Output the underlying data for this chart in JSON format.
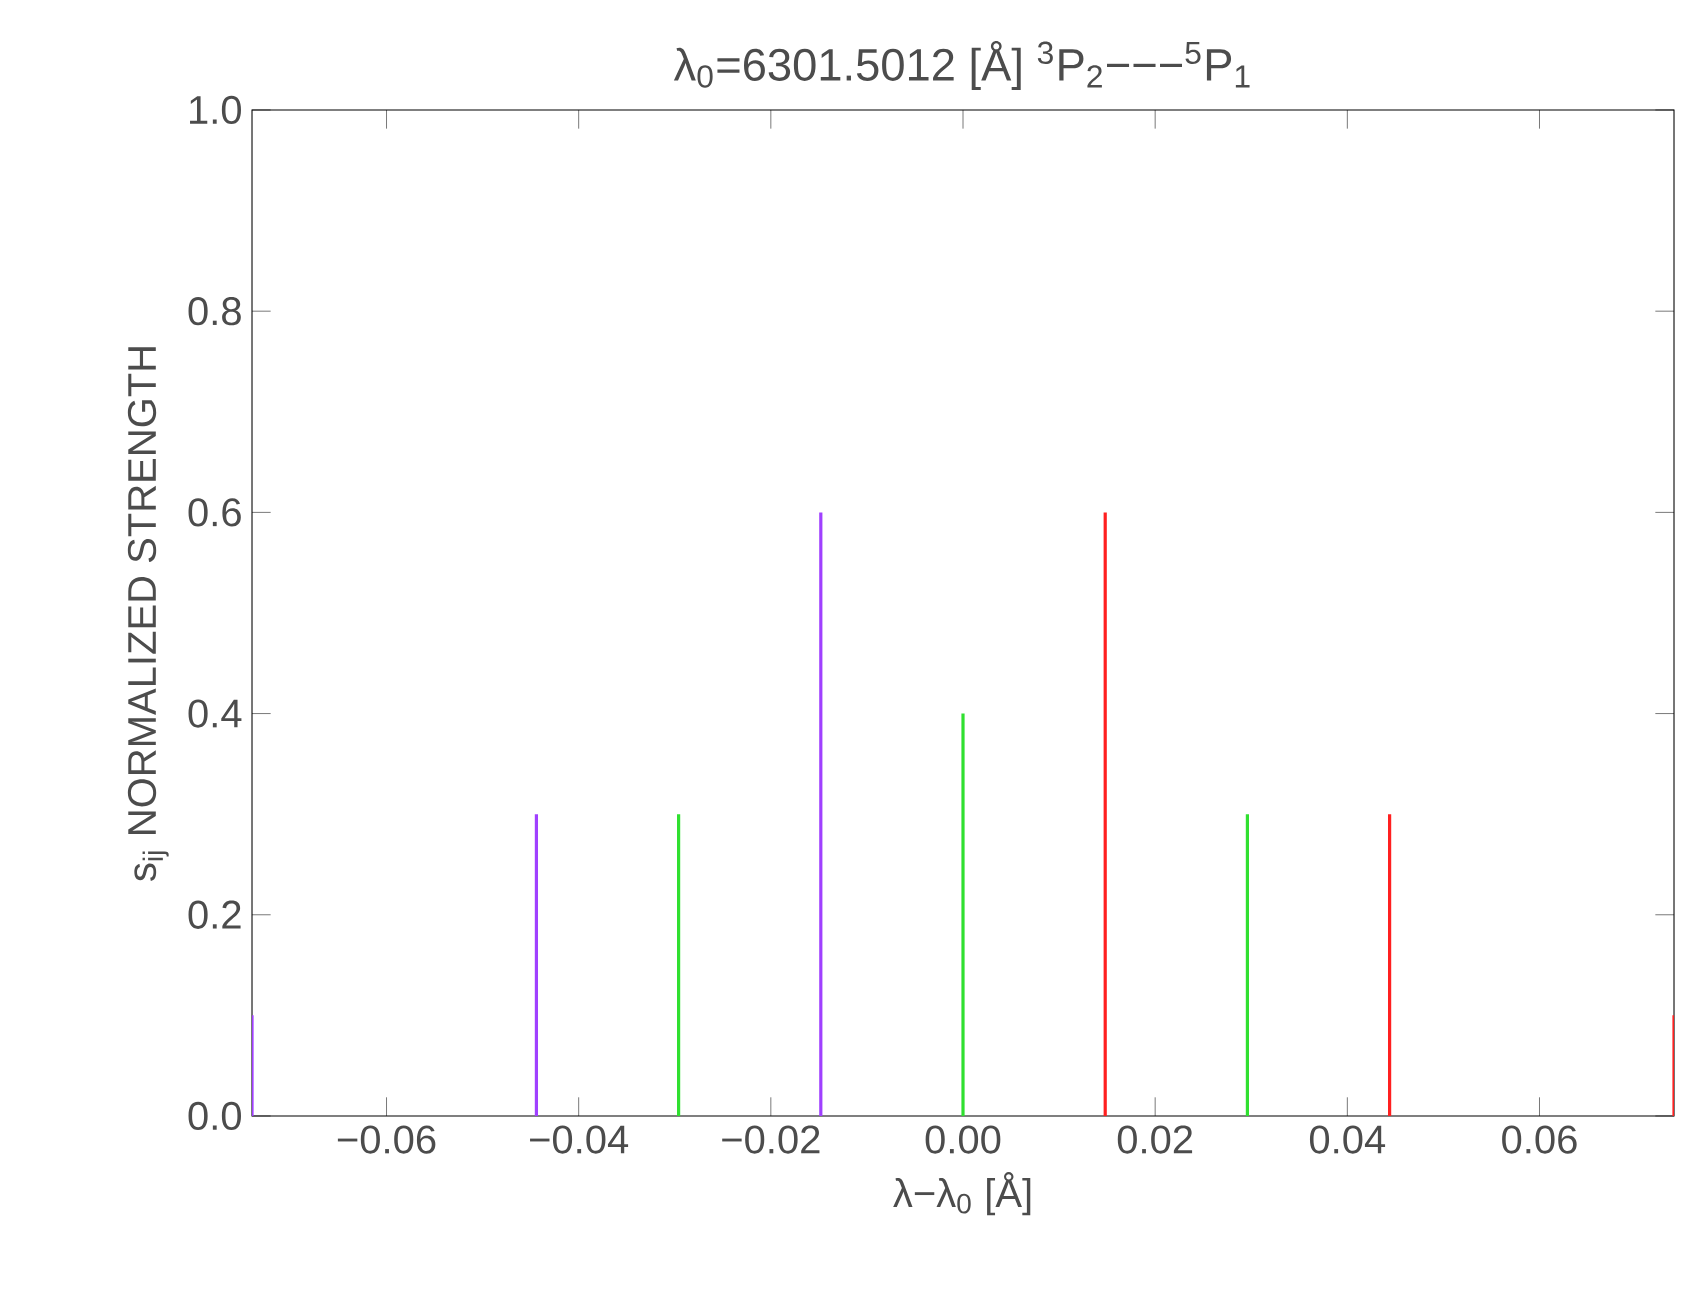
{
  "chart_data": {
    "type": "bar",
    "title": "λ$_{0}$=6301.5012 [Å] $^{3}$P$_{2}$−−−$^{5}$P$_{1}$",
    "xlabel": "λ−λ$_{0}$ [Å]",
    "ylabel": "s$_{ij}$ NORMALIZED STRENGTH",
    "xlim": [
      -0.074,
      0.074
    ],
    "ylim": [
      0,
      1
    ],
    "xticks": [
      {
        "value": -0.06,
        "label": "−0.06"
      },
      {
        "value": -0.04,
        "label": "−0.04"
      },
      {
        "value": -0.02,
        "label": "−0.02"
      },
      {
        "value": 0,
        "label": "0.00"
      },
      {
        "value": 0.02,
        "label": "0.02"
      },
      {
        "value": 0.04,
        "label": "0.04"
      },
      {
        "value": 0.06,
        "label": "0.06"
      }
    ],
    "yticks": [
      {
        "value": 0,
        "label": "0.0"
      },
      {
        "value": 0.2,
        "label": "0.2"
      },
      {
        "value": 0.4,
        "label": "0.4"
      },
      {
        "value": 0.6,
        "label": "0.6"
      },
      {
        "value": 0.8,
        "label": "0.8"
      },
      {
        "value": 1,
        "label": "1.0"
      }
    ],
    "grid": false,
    "series": [
      {
        "color": "#a040ff",
        "x": [
          -0.074,
          -0.0444,
          -0.0148
        ],
        "values": [
          0.1,
          0.3,
          0.6
        ]
      },
      {
        "color": "#30e030",
        "x": [
          -0.0296,
          0,
          0.0296
        ],
        "values": [
          0.3,
          0.4,
          0.3
        ]
      },
      {
        "color": "#ff2020",
        "x": [
          0.0148,
          0.0444,
          0.074
        ],
        "values": [
          0.6,
          0.3,
          0.1
        ]
      }
    ]
  }
}
